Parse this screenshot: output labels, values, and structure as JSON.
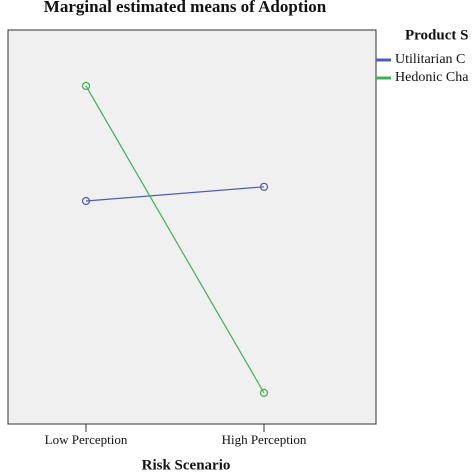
{
  "chart_data": {
    "type": "line",
    "title": "Marginal estimated means of Adoption",
    "x_label": "Risk Scenario",
    "categories": [
      "Low Perception",
      "High Perception"
    ],
    "ylim": [
      0,
      100
    ],
    "legend_title": "Product S",
    "series": [
      {
        "name": "Utilitarian C",
        "color": "#4a5fb5",
        "values": [
          56.6,
          60.2
        ]
      },
      {
        "name": "Hedonic Cha",
        "color": "#3cb44b",
        "values": [
          85.8,
          7.9
        ]
      }
    ]
  }
}
